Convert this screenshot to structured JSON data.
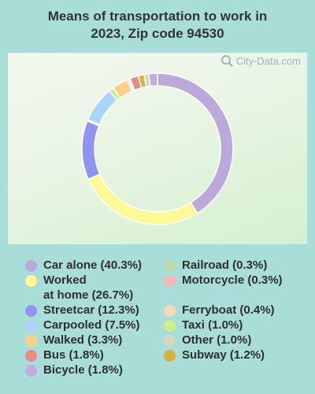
{
  "title_line1": "Means of transportation to work in",
  "title_line2": "2023, Zip code 94530",
  "watermark": "City-Data.com",
  "chart_data": {
    "type": "donut",
    "title": "Means of transportation to work in 2023, Zip code 94530",
    "unit": "%",
    "start": "top, clockwise",
    "slices": [
      {
        "label": "Car alone",
        "value": 40.3,
        "color": "#bca9dc"
      },
      {
        "label": "Worked at home",
        "value": 26.7,
        "color": "#fdf996"
      },
      {
        "label": "Streetcar",
        "value": 12.3,
        "color": "#9194ef"
      },
      {
        "label": "Railroad",
        "value": 0.3,
        "color": "#bfd9ae"
      },
      {
        "label": "Carpooled",
        "value": 7.5,
        "color": "#acd3fa"
      },
      {
        "label": "Taxi",
        "value": 1.0,
        "color": "#c8f08b"
      },
      {
        "label": "Walked",
        "value": 3.3,
        "color": "#fcd08c"
      },
      {
        "label": "Ferryboat",
        "value": 0.4,
        "color": "#f6d9b6"
      },
      {
        "label": "Motorcycle",
        "value": 0.3,
        "color": "#f4b6b8"
      },
      {
        "label": "Bus",
        "value": 1.8,
        "color": "#e88c88"
      },
      {
        "label": "Subway",
        "value": 1.2,
        "color": "#d7b23e"
      },
      {
        "label": "Other",
        "value": 1.0,
        "color": "#d4d7be"
      },
      {
        "label": "Bicycle",
        "value": 1.8,
        "color": "#c1acdf"
      }
    ]
  },
  "legend": [
    {
      "text": "Car alone (40.3%)",
      "color": "#bca9dc"
    },
    {
      "text": "Worked",
      "text2": "at home (26.7%)",
      "color": "#fdf996"
    },
    {
      "text": "Streetcar (12.3%)",
      "color": "#9194ef"
    },
    {
      "text": "Carpooled (7.5%)",
      "color": "#acd3fa"
    },
    {
      "text": "Walked (3.3%)",
      "color": "#fcd08c"
    },
    {
      "text": "Bus (1.8%)",
      "color": "#e88c88"
    },
    {
      "text": "Bicycle (1.8%)",
      "color": "#c1acdf"
    },
    {
      "text": "Railroad (0.3%)",
      "color": "#bfd9ae"
    },
    {
      "text": "Motorcycle (0.3%)",
      "color": "#f4b6b8"
    },
    {
      "text": "Ferryboat (0.4%)",
      "color": "#f6d9b6"
    },
    {
      "text": "Taxi (1.0%)",
      "color": "#c8f08b"
    },
    {
      "text": "Other (1.0%)",
      "color": "#d4d7be"
    },
    {
      "text": "Subway (1.2%)",
      "color": "#d7b23e"
    }
  ]
}
